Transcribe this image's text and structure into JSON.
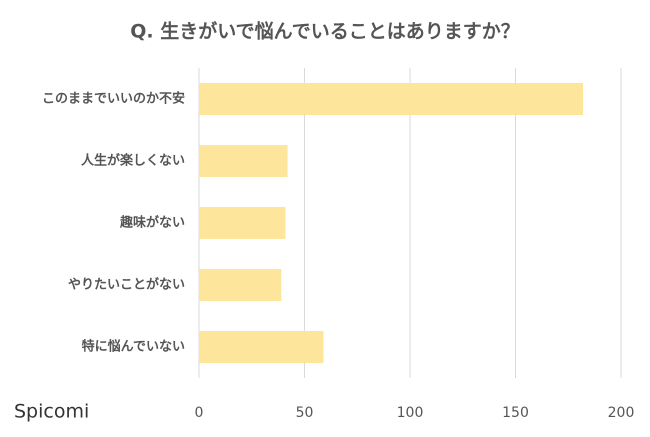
{
  "chart_data": {
    "type": "bar",
    "orientation": "horizontal",
    "title": "Q. 生きがいで悩んでいることはありますか？",
    "categories": [
      "このままでいいのか不安",
      "人生が楽しくない",
      "趣味がない",
      "やりたいことがない",
      "特に悩んでいない"
    ],
    "values": [
      182,
      42,
      41,
      39,
      59
    ],
    "color": "#fde69c",
    "xlim": [
      0,
      200
    ],
    "xticks": [
      0,
      50,
      100,
      150,
      200
    ],
    "grid": true,
    "watermark": "Spicomi"
  }
}
